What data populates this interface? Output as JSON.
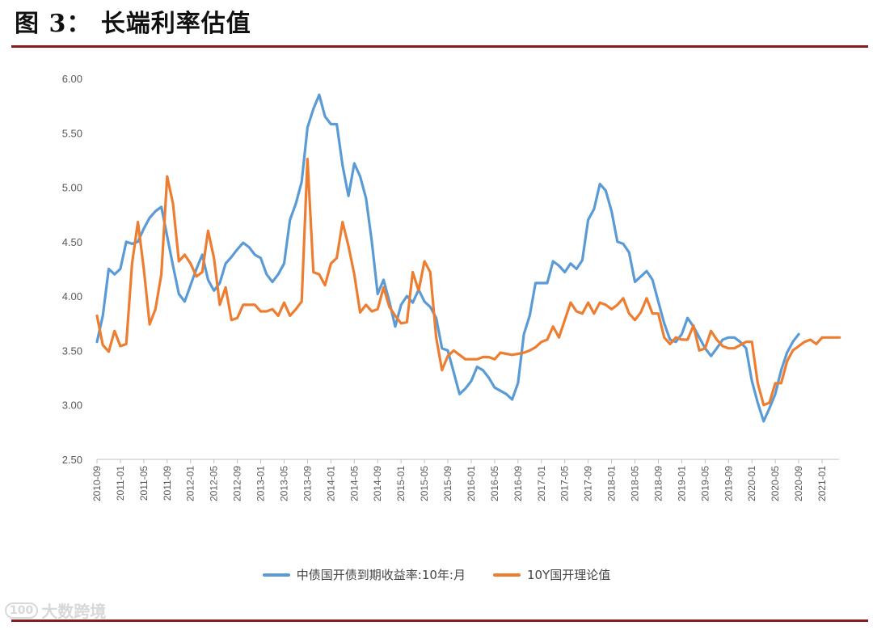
{
  "figure": {
    "title": "图 3： 长端利率估值"
  },
  "watermark": {
    "logo": "100",
    "text": "大数跨境"
  },
  "chart_data": {
    "type": "line",
    "title": "",
    "xlabel": "",
    "ylabel": "",
    "ylim": [
      2.5,
      6.0
    ],
    "yticks": [
      "2.50",
      "3.00",
      "3.50",
      "4.00",
      "4.50",
      "5.00",
      "5.50",
      "6.00"
    ],
    "x_tick_labels": [
      "2010-09",
      "2011-01",
      "2011-05",
      "2011-09",
      "2012-01",
      "2012-05",
      "2012-09",
      "2013-01",
      "2013-05",
      "2013-09",
      "2014-01",
      "2014-05",
      "2014-09",
      "2015-01",
      "2015-05",
      "2015-09",
      "2016-01",
      "2016-05",
      "2016-09",
      "2017-01",
      "2017-05",
      "2017-09",
      "2018-01",
      "2018-05",
      "2018-09",
      "2019-01",
      "2019-05",
      "2019-09",
      "2020-01",
      "2020-05",
      "2020-09",
      "2021-01"
    ],
    "x_start": "2010-09",
    "grid": false,
    "legend_position": "bottom",
    "series": [
      {
        "name": "中债国开债到期收益率:10年:月",
        "color": "#5b9bd5",
        "values": [
          3.58,
          3.82,
          4.25,
          4.2,
          4.25,
          4.5,
          4.48,
          4.5,
          4.62,
          4.72,
          4.78,
          4.82,
          4.55,
          4.28,
          4.02,
          3.95,
          4.1,
          4.25,
          4.38,
          4.15,
          4.05,
          4.12,
          4.3,
          4.36,
          4.43,
          4.49,
          4.45,
          4.38,
          4.35,
          4.2,
          4.13,
          4.2,
          4.3,
          4.7,
          4.85,
          5.05,
          5.55,
          5.72,
          5.85,
          5.65,
          5.58,
          5.58,
          5.2,
          4.92,
          5.22,
          5.1,
          4.9,
          4.5,
          4.02,
          4.15,
          3.95,
          3.72,
          3.92,
          4.0,
          3.94,
          4.06,
          3.95,
          3.9,
          3.8,
          3.52,
          3.5,
          3.3,
          3.1,
          3.15,
          3.22,
          3.35,
          3.32,
          3.25,
          3.16,
          3.13,
          3.1,
          3.05,
          3.2,
          3.65,
          3.82,
          4.12,
          4.12,
          4.12,
          4.32,
          4.28,
          4.22,
          4.3,
          4.25,
          4.33,
          4.7,
          4.8,
          5.03,
          4.97,
          4.78,
          4.5,
          4.48,
          4.4,
          4.13,
          4.18,
          4.23,
          4.15,
          3.95,
          3.75,
          3.6,
          3.58,
          3.65,
          3.8,
          3.72,
          3.62,
          3.52,
          3.45,
          3.52,
          3.6,
          3.62,
          3.62,
          3.58,
          3.52,
          3.22,
          3.02,
          2.85,
          2.97,
          3.1,
          3.32,
          3.48,
          3.58,
          3.65
        ]
      },
      {
        "name": "10Y国开理论值",
        "color": "#ed7d31",
        "values": [
          3.82,
          3.55,
          3.49,
          3.68,
          3.54,
          3.56,
          4.3,
          4.68,
          4.25,
          3.74,
          3.88,
          4.2,
          5.1,
          4.85,
          4.32,
          4.38,
          4.3,
          4.18,
          4.22,
          4.6,
          4.35,
          3.92,
          4.08,
          3.78,
          3.8,
          3.92,
          3.92,
          3.92,
          3.86,
          3.86,
          3.88,
          3.82,
          3.94,
          3.82,
          3.88,
          3.95,
          5.26,
          4.22,
          4.2,
          4.1,
          4.3,
          4.35,
          4.68,
          4.46,
          4.2,
          3.85,
          3.92,
          3.86,
          3.88,
          4.08,
          3.9,
          3.82,
          3.75,
          3.76,
          4.22,
          4.05,
          4.32,
          4.22,
          3.62,
          3.32,
          3.45,
          3.5,
          3.46,
          3.42,
          3.42,
          3.42,
          3.44,
          3.44,
          3.42,
          3.48,
          3.47,
          3.46,
          3.47,
          3.48,
          3.5,
          3.53,
          3.58,
          3.6,
          3.72,
          3.62,
          3.78,
          3.94,
          3.86,
          3.84,
          3.94,
          3.84,
          3.94,
          3.92,
          3.88,
          3.92,
          3.98,
          3.84,
          3.78,
          3.85,
          3.98,
          3.84,
          3.84,
          3.62,
          3.56,
          3.62,
          3.6,
          3.6,
          3.73,
          3.5,
          3.52,
          3.68,
          3.6,
          3.54,
          3.52,
          3.52,
          3.55,
          3.58,
          3.58,
          3.2,
          3.0,
          3.02,
          3.2,
          3.2,
          3.4,
          3.5,
          3.54,
          3.58,
          3.6,
          3.56,
          3.62,
          3.62,
          3.62,
          3.62
        ]
      }
    ]
  }
}
